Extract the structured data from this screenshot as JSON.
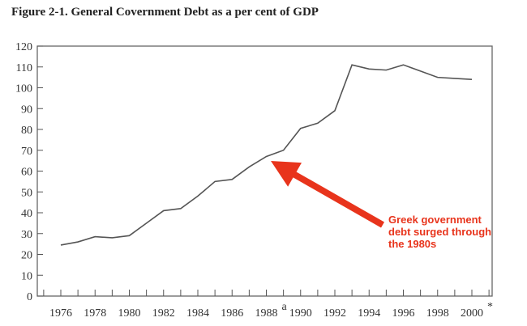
{
  "chart_data": {
    "type": "line",
    "title": "Figure 2-1. General Covernment Debt as a per cent of GDP",
    "xlabel": "",
    "ylabel": "",
    "ylim": [
      0,
      120
    ],
    "yticks": [
      0,
      10,
      20,
      30,
      40,
      50,
      60,
      70,
      80,
      90,
      100,
      110,
      120
    ],
    "xlim": [
      1974.6,
      2001.2
    ],
    "xtick_labels": [
      {
        "year": 1976,
        "label": "1976",
        "sup": ""
      },
      {
        "year": 1978,
        "label": "1978",
        "sup": ""
      },
      {
        "year": 1980,
        "label": "1980",
        "sup": ""
      },
      {
        "year": 1982,
        "label": "1982",
        "sup": ""
      },
      {
        "year": 1984,
        "label": "1984",
        "sup": ""
      },
      {
        "year": 1986,
        "label": "1986",
        "sup": ""
      },
      {
        "year": 1988,
        "label": "1988",
        "sup": "a"
      },
      {
        "year": 1990,
        "label": "1990",
        "sup": ""
      },
      {
        "year": 1992,
        "label": "1992",
        "sup": ""
      },
      {
        "year": 1994,
        "label": "1994",
        "sup": ""
      },
      {
        "year": 1996,
        "label": "1996",
        "sup": ""
      },
      {
        "year": 1998,
        "label": "1998",
        "sup": ""
      },
      {
        "year": 2000,
        "label": "2000",
        "sup": "*"
      }
    ],
    "grid": false,
    "series": [
      {
        "color": "#555555",
        "x": [
          1976,
          1977,
          1978,
          1979,
          1980,
          1981,
          1982,
          1983,
          1984,
          1985,
          1986,
          1987,
          1988,
          1989,
          1990,
          1991,
          1992,
          1993,
          1994,
          1995,
          1996,
          1997,
          1998,
          1999,
          2000
        ],
        "y": [
          24.5,
          26,
          28.5,
          28,
          29,
          35,
          41,
          42,
          48,
          55,
          56,
          62,
          67,
          70,
          80.5,
          83,
          89,
          111,
          109,
          108.5,
          111,
          108,
          105,
          104.5,
          104
        ]
      }
    ],
    "annotation": {
      "lines": [
        "Greek government",
        "debt surged through",
        "the 1980s"
      ],
      "color": "#e8341c",
      "arrow_to": {
        "x": 1988.5,
        "y": 66
      }
    }
  }
}
